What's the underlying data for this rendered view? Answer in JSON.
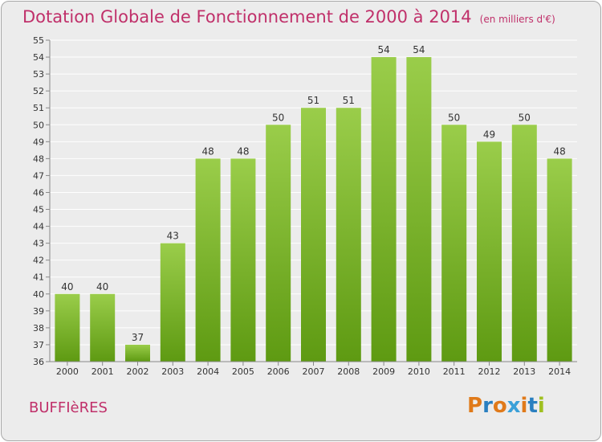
{
  "header": {
    "title": "Dotation Globale de Fonctionnement de 2000 à 2014",
    "unit": "(en milliers d'€)"
  },
  "footer": {
    "commune": "BUFFIèRES",
    "logo_text": "Proxiti"
  },
  "colors": {
    "accent": "#c0306a",
    "bar_top": "#9acd4a",
    "bar_bottom": "#5e9a12",
    "background": "#ececec",
    "logo_letters": [
      "#e07a1a",
      "#2a7fc0",
      "#e07a1a",
      "#3aa0d8",
      "#e07a1a",
      "#2a7fc0",
      "#a0c020"
    ]
  },
  "chart_data": {
    "type": "bar",
    "categories": [
      "2000",
      "2001",
      "2002",
      "2003",
      "2004",
      "2005",
      "2006",
      "2007",
      "2008",
      "2009",
      "2010",
      "2011",
      "2012",
      "2013",
      "2014"
    ],
    "values": [
      40,
      40,
      37,
      43,
      48,
      48,
      50,
      51,
      51,
      54,
      54,
      50,
      49,
      50,
      48
    ],
    "ylim": [
      36,
      55
    ],
    "yticks": [
      36,
      37,
      38,
      39,
      40,
      41,
      42,
      43,
      44,
      45,
      46,
      47,
      48,
      49,
      50,
      51,
      52,
      53,
      54,
      55
    ],
    "grid": true,
    "data_labels": true
  }
}
